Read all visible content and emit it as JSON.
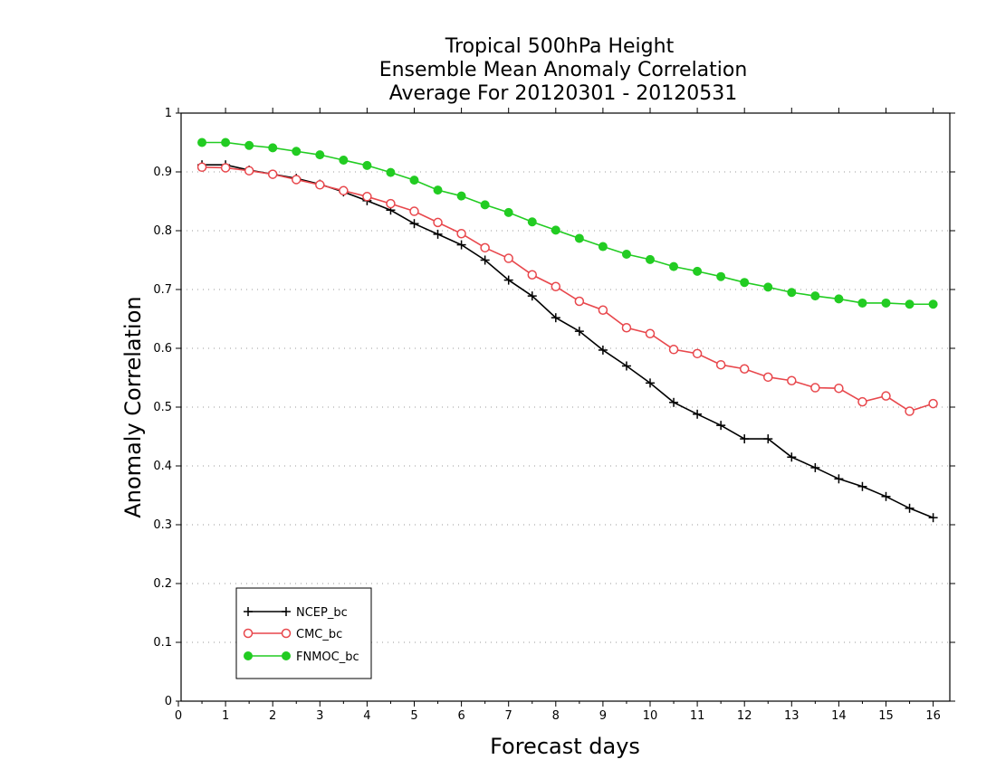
{
  "chart_data": {
    "type": "line",
    "title_lines": [
      "Tropical 500hPa Height",
      "Ensemble Mean Anomaly Correlation",
      "Average For 20120301 - 20120531"
    ],
    "xlabel": "Forecast days",
    "ylabel": "Anomaly Correlation",
    "xlim": [
      0,
      16.3
    ],
    "ylim": [
      0,
      1
    ],
    "xticks": [
      "0",
      "1",
      "2",
      "3",
      "4",
      "5",
      "6",
      "7",
      "8",
      "9",
      "10",
      "11",
      "12",
      "13",
      "14",
      "15",
      "16"
    ],
    "yticks": [
      "0",
      "0.1",
      "0.2",
      "0.3",
      "0.4",
      "0.5",
      "0.6",
      "0.7",
      "0.8",
      "0.9",
      "1"
    ],
    "grid": "horizontal dotted",
    "legend_position": "bottom-left",
    "x": [
      0.5,
      1,
      1.5,
      2,
      2.5,
      3,
      3.5,
      4,
      4.5,
      5,
      5.5,
      6,
      6.5,
      7,
      7.5,
      8,
      8.5,
      9,
      9.5,
      10,
      10.5,
      11,
      11.5,
      12,
      12.5,
      13,
      13.5,
      14,
      14.5,
      15,
      15.5,
      16
    ],
    "series": [
      {
        "name": "NCEP_bc",
        "color": "#000000",
        "marker": "plus",
        "values": [
          0.912,
          0.912,
          0.903,
          0.896,
          0.889,
          0.879,
          0.866,
          0.851,
          0.835,
          0.812,
          0.794,
          0.776,
          0.75,
          0.716,
          0.689,
          0.652,
          0.629,
          0.597,
          0.57,
          0.541,
          0.508,
          0.488,
          0.469,
          0.446,
          0.446,
          0.415,
          0.397,
          0.378,
          0.365,
          0.348,
          0.328,
          0.312
        ]
      },
      {
        "name": "CMC_bc",
        "color": "#e8474c",
        "marker": "open-circle",
        "values": [
          0.908,
          0.907,
          0.902,
          0.896,
          0.887,
          0.878,
          0.868,
          0.858,
          0.846,
          0.833,
          0.814,
          0.795,
          0.771,
          0.753,
          0.725,
          0.705,
          0.68,
          0.665,
          0.635,
          0.625,
          0.598,
          0.591,
          0.572,
          0.565,
          0.551,
          0.545,
          0.533,
          0.532,
          0.509,
          0.519,
          0.493,
          0.506
        ]
      },
      {
        "name": "FNMOC_bc",
        "color": "#22cc22",
        "marker": "filled-circle",
        "values": [
          0.95,
          0.95,
          0.945,
          0.941,
          0.935,
          0.929,
          0.92,
          0.911,
          0.899,
          0.886,
          0.869,
          0.859,
          0.844,
          0.831,
          0.815,
          0.801,
          0.787,
          0.773,
          0.76,
          0.751,
          0.739,
          0.731,
          0.722,
          0.712,
          0.704,
          0.695,
          0.689,
          0.684,
          0.677,
          0.677,
          0.675,
          0.675
        ]
      }
    ]
  }
}
